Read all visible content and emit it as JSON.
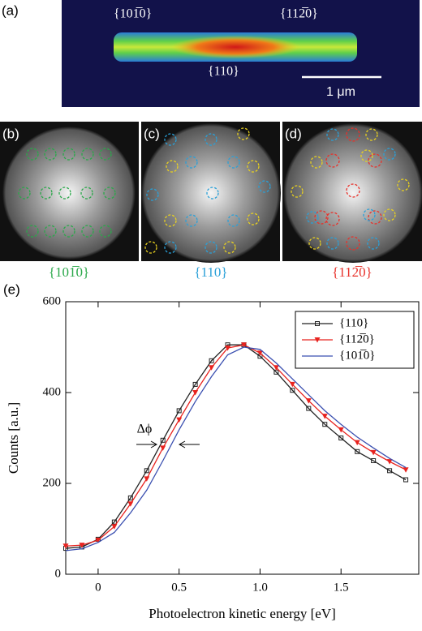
{
  "figure": {
    "panel_a": {
      "label": "(a)",
      "facet_left": "{101̅0}",
      "facet_right": "{112̅0}",
      "facet_bottom": "{110}",
      "scale_bar": "1 μm"
    },
    "panel_b": {
      "label": "(b)",
      "caption": "{101̅0}"
    },
    "panel_c": {
      "label": "(c)",
      "caption": "{110}"
    },
    "panel_d": {
      "label": "(d)",
      "caption": "{112̅0}"
    },
    "panel_e": {
      "label": "(e)",
      "annotation": "Δϕ"
    }
  },
  "chart_data": {
    "type": "line",
    "xlabel": "Photoelectron kinetic energy [eV]",
    "ylabel": "Counts [a.u.]",
    "x": [
      -0.2,
      -0.1,
      0,
      0.1,
      0.2,
      0.3,
      0.4,
      0.5,
      0.6,
      0.7,
      0.8,
      0.9,
      1.0,
      1.1,
      1.2,
      1.3,
      1.4,
      1.5,
      1.6,
      1.7,
      1.8,
      1.9
    ],
    "series": [
      {
        "name": "{110}",
        "color": "#222222",
        "marker": "square",
        "values": [
          57,
          60,
          77,
          115,
          168,
          228,
          295,
          360,
          418,
          470,
          505,
          505,
          480,
          445,
          405,
          365,
          330,
          300,
          270,
          250,
          228,
          208
        ]
      },
      {
        "name": "{112̅0}",
        "color": "#e8231f",
        "marker": "triangle",
        "values": [
          62,
          64,
          75,
          105,
          155,
          210,
          278,
          340,
          400,
          455,
          498,
          505,
          487,
          455,
          418,
          382,
          348,
          318,
          290,
          268,
          248,
          230
        ]
      },
      {
        "name": "{101̅0}",
        "color": "#3a4fb0",
        "marker": null,
        "values": [
          52,
          56,
          70,
          92,
          135,
          185,
          250,
          318,
          380,
          435,
          483,
          500,
          495,
          465,
          430,
          395,
          360,
          330,
          302,
          278,
          255,
          235
        ]
      }
    ],
    "xlim": [
      -0.2,
      1.98
    ],
    "ylim": [
      0,
      600
    ],
    "xticks": [
      0,
      0.5,
      {
        "value": 1,
        "label": "1.0"
      },
      1.5
    ],
    "yticks": [
      0,
      200,
      400,
      600
    ],
    "legend": "upper right"
  }
}
